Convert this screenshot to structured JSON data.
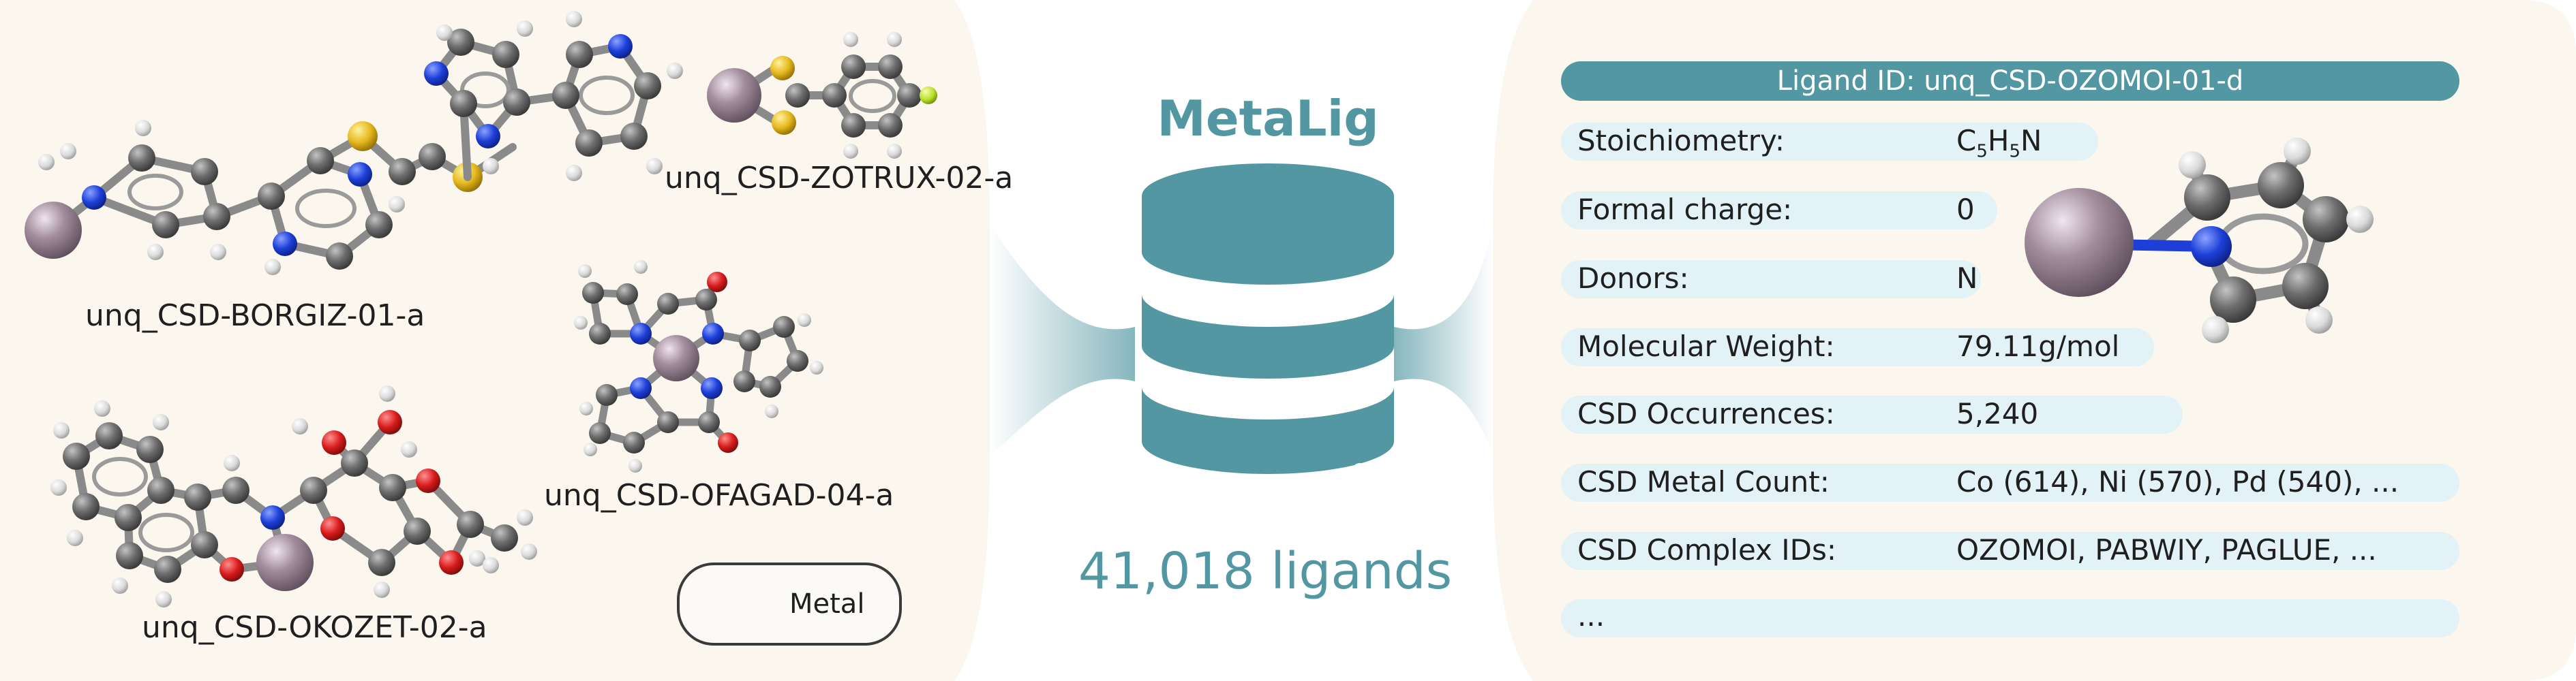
{
  "figure": {
    "title": "MetaLig",
    "ligand_count": "41,018 ligands"
  },
  "molecules": [
    {
      "label": "unq_CSD-BORGIZ-01-a"
    },
    {
      "label": "unq_CSD-ZOTRUX-02-a"
    },
    {
      "label": "unq_CSD-OFAGAD-04-a"
    },
    {
      "label": "unq_CSD-OKOZET-02-a"
    }
  ],
  "legend": {
    "label": "Metal"
  },
  "card": {
    "header": "Ligand ID: unq_CSD-OZOMOI-01-d",
    "stoichiometry_label": "Stoichiometry:",
    "stoich": {
      "c": "C",
      "c_sub": "5",
      "h": "H",
      "h_sub": "5",
      "n": "N"
    },
    "rows": [
      {
        "label": "Formal charge:",
        "value": "0"
      },
      {
        "label": "Donors:",
        "value": "N"
      },
      {
        "label": "Molecular Weight:",
        "value": "79.11g/mol"
      },
      {
        "label": "CSD Occurrences:",
        "value": "5,240"
      },
      {
        "label": "CSD Metal Count:",
        "value": "Co (614), Ni (570), Pd (540), ..."
      },
      {
        "label": "CSD Complex IDs:",
        "value": "OZOMOI, PABWIY, PAGLUE, ..."
      },
      {
        "label": "...",
        "value": ""
      }
    ]
  },
  "colors": {
    "accent": "#5297a2",
    "pill": "#e3f2f7",
    "panel": "#fbf6ee",
    "carbon": "#6c6c6c",
    "hydrogen": "#e6e6e6",
    "nitrogen": "#1d3fd8",
    "oxygen": "#d81c1c",
    "sulfur": "#e6b91e",
    "fluorine": "#b8e02a",
    "metal": "#a48e9e"
  }
}
